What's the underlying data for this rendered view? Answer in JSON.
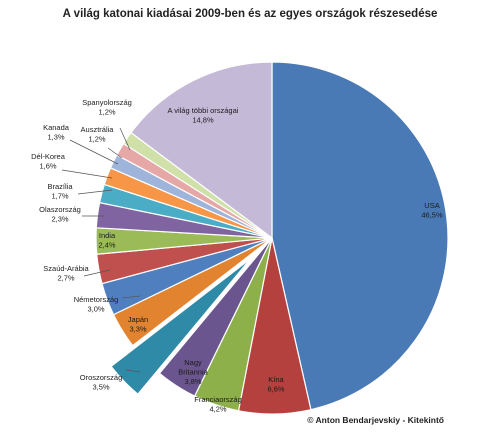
{
  "chart_data": {
    "type": "pie",
    "title": "A világ katonai kiadásai 2009-ben és az egyes országok részesedése",
    "slices": [
      {
        "name": "USA",
        "value": 46.5,
        "label": "46,5%",
        "color": "#4a7ab5"
      },
      {
        "name": "Kína",
        "value": 6.6,
        "label": "6,6%",
        "color": "#b5413e"
      },
      {
        "name": "Franciaország",
        "value": 4.2,
        "label": "4,2%",
        "color": "#8db04a"
      },
      {
        "name": "Nagy Britannia",
        "value": 3.8,
        "label": "3,8%",
        "color": "#6b558f"
      },
      {
        "name": "Oroszország",
        "value": 3.5,
        "label": "3,5%",
        "color": "#2e8aa6",
        "exploded": true
      },
      {
        "name": "Japán",
        "value": 3.3,
        "label": "3,3%",
        "color": "#e2842f"
      },
      {
        "name": "Németország",
        "value": 3.0,
        "label": "3,0%",
        "color": "#4f7fbf"
      },
      {
        "name": "Szaúd-Arábia",
        "value": 2.7,
        "label": "2,7%",
        "color": "#c0504d"
      },
      {
        "name": "India",
        "value": 2.4,
        "label": "2,4%",
        "color": "#9bbb59"
      },
      {
        "name": "Olaszország",
        "value": 2.3,
        "label": "2,3%",
        "color": "#8064a2"
      },
      {
        "name": "Brazília",
        "value": 1.7,
        "label": "1,7%",
        "color": "#4bacc6"
      },
      {
        "name": "Dél-Korea",
        "value": 1.6,
        "label": "1,6%",
        "color": "#f79646"
      },
      {
        "name": "Kanada",
        "value": 1.3,
        "label": "1,3%",
        "color": "#9fb4da"
      },
      {
        "name": "Ausztrália",
        "value": 1.2,
        "label": "1,2%",
        "color": "#e6a8a6"
      },
      {
        "name": "Spanyolország",
        "value": 1.2,
        "label": "1,2%",
        "color": "#cfe0a8"
      },
      {
        "name": "A világ többi országai",
        "value": 14.8,
        "label": "14,8%",
        "color": "#c5b9d8"
      }
    ]
  },
  "credit": "© Anton Bendarjevskiy - Kitekintő"
}
